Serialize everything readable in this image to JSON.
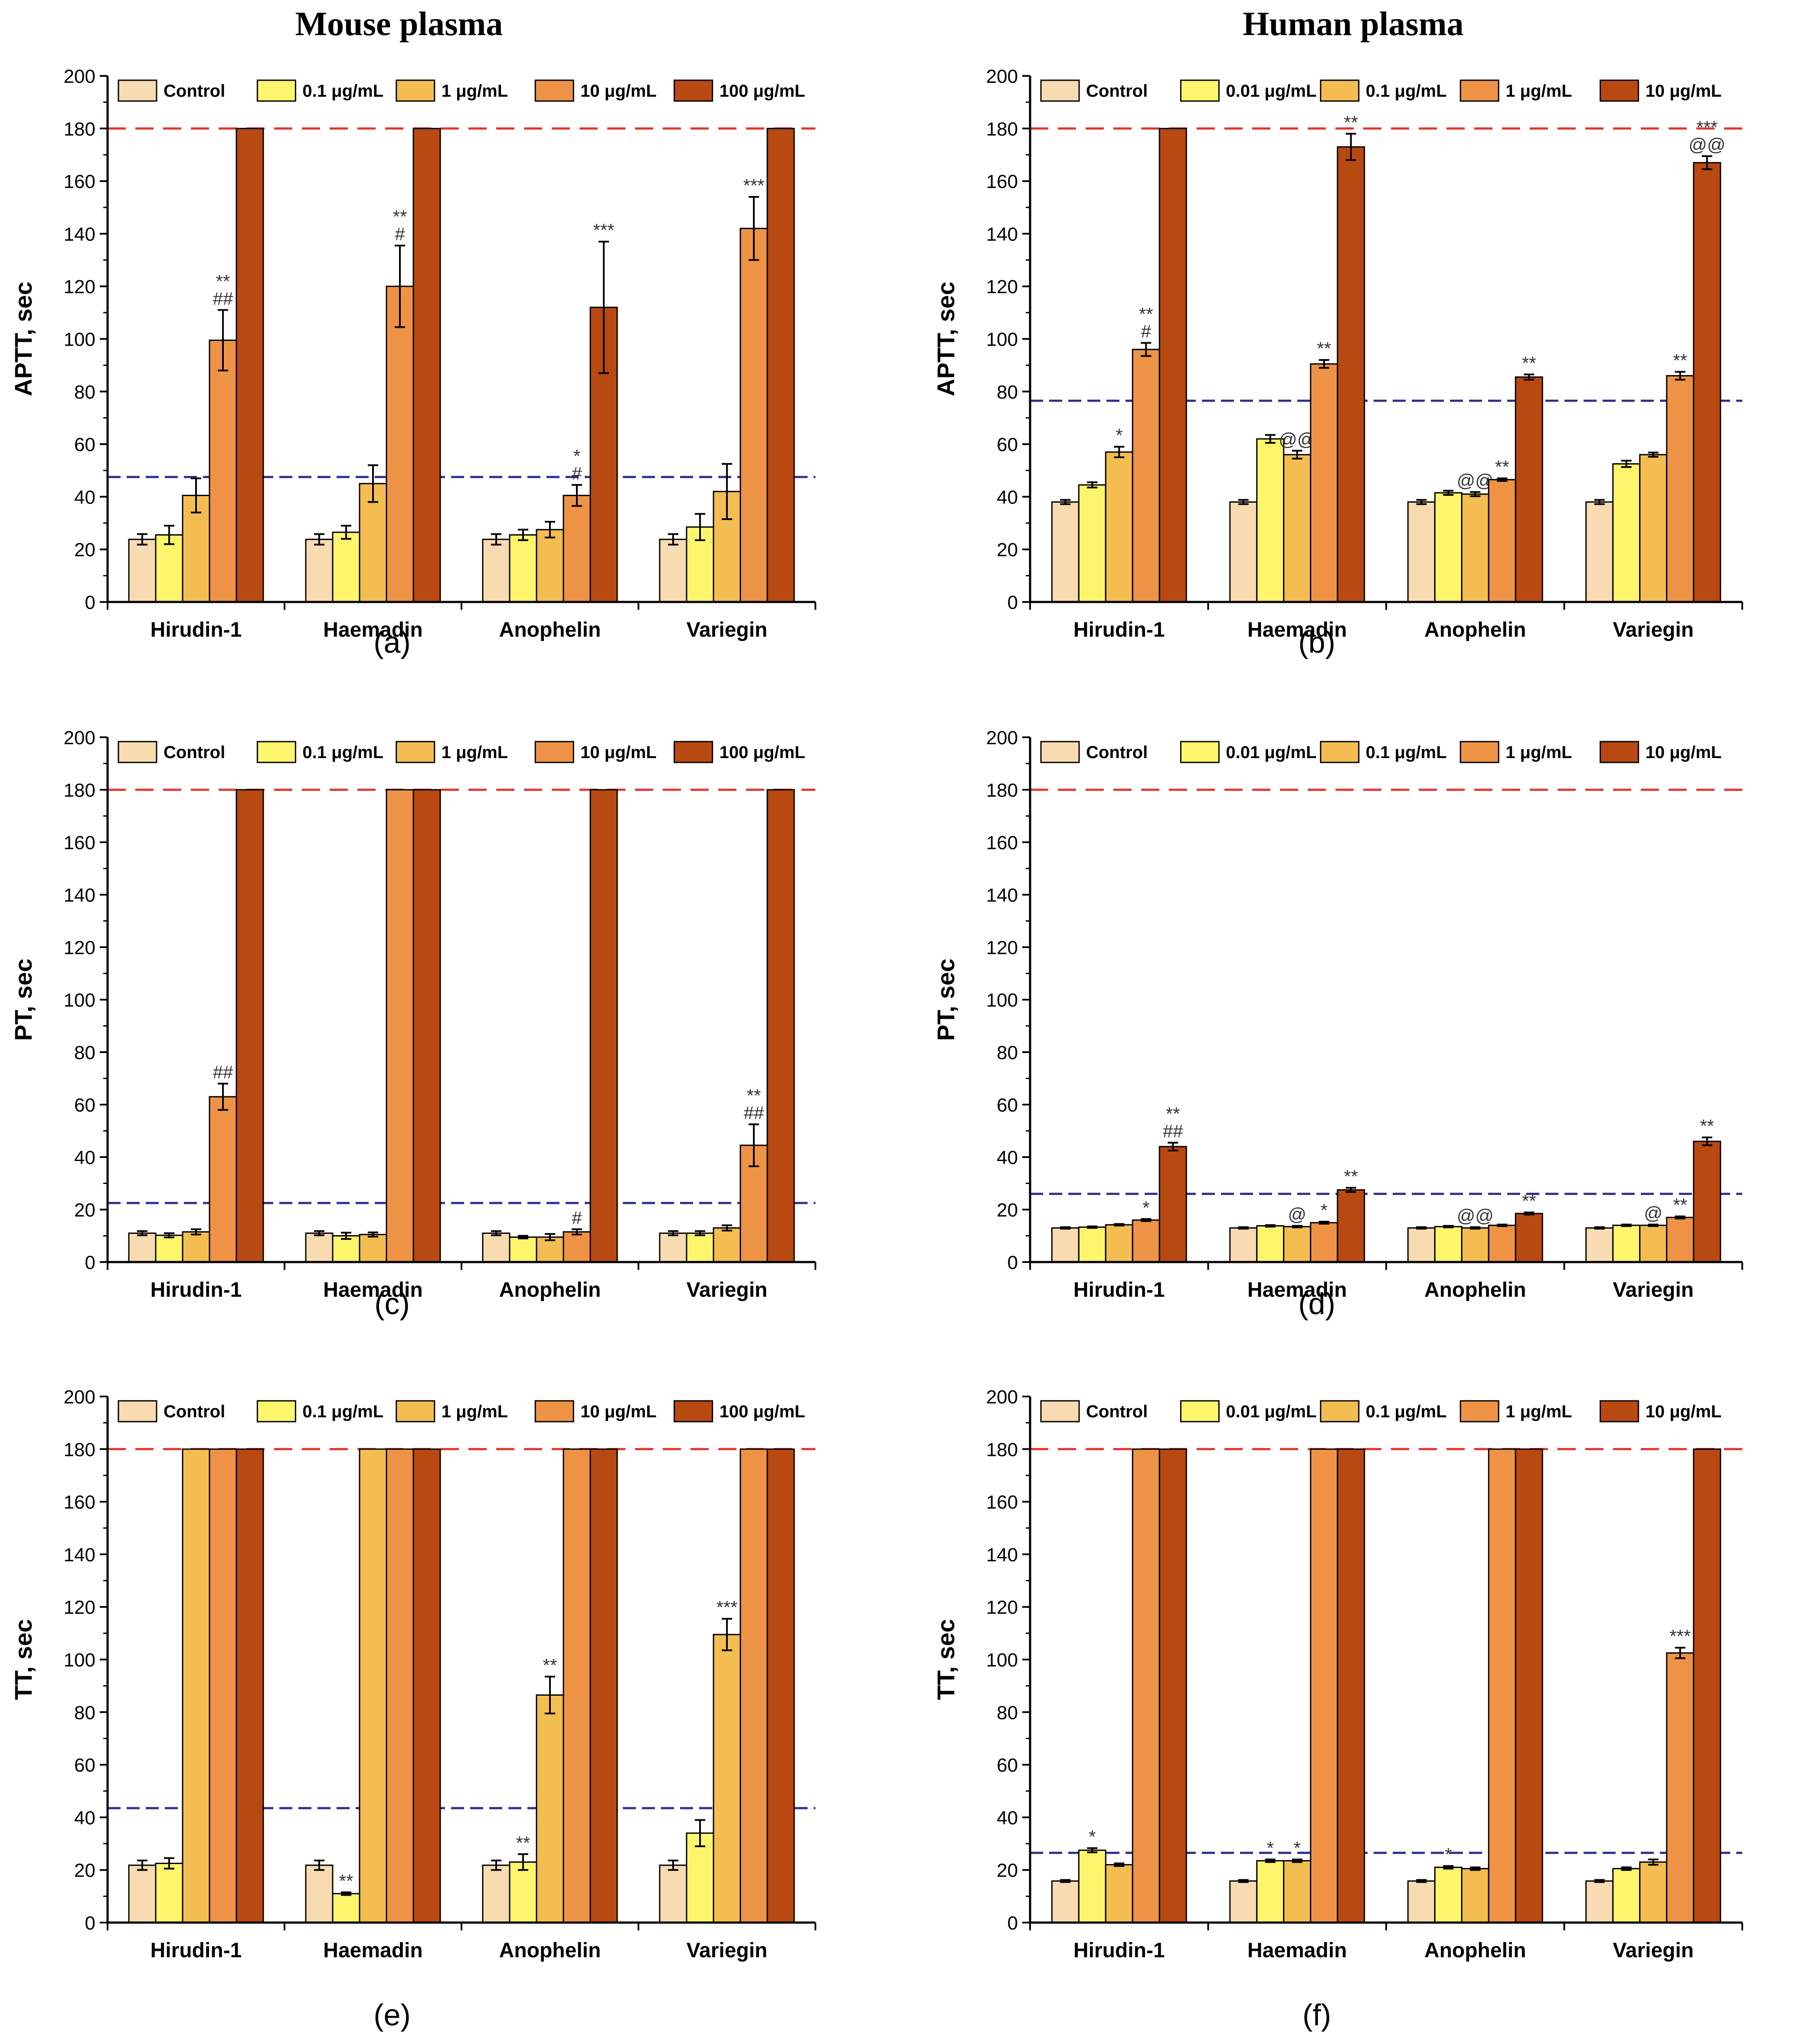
{
  "figure": {
    "column_titles": [
      "Mouse plasma",
      "Human plasma"
    ]
  },
  "colors": {
    "series": [
      "#f8dbb0",
      "#fdf56c",
      "#f3bd52",
      "#ee9346",
      "#b84911"
    ],
    "upper_ref_line": "#e0342c",
    "lower_ref_line": "#2d2d8c",
    "axis": "#000000",
    "error_bar": "#000000"
  },
  "chart_data": [
    {
      "id": "a",
      "panel_label": "(a)",
      "type": "bar",
      "title": "",
      "ylabel": "APTT, sec",
      "ylim": [
        0,
        200
      ],
      "yticks": [
        0,
        20,
        40,
        60,
        80,
        100,
        120,
        140,
        160,
        180,
        200
      ],
      "ytick_labels": [
        "0",
        "20",
        "40",
        "60",
        "80",
        "100",
        "120",
        "140",
        "160",
        "180",
        "200"
      ],
      "categories": [
        "Hirudin-1",
        "Haemadin",
        "Anophelin",
        "Variegin"
      ],
      "legend": [
        "Control",
        "0.1 μg/mL",
        "1 μg/mL",
        "10 μg/mL",
        "100 μg/mL"
      ],
      "ref_lines": {
        "upper": 180,
        "lower": 47.5
      },
      "series": [
        {
          "name": "Control",
          "values": [
            23.8,
            23.8,
            23.8,
            23.8
          ],
          "errors": [
            2,
            2,
            2,
            2
          ],
          "labels": [
            [],
            [],
            [],
            []
          ]
        },
        {
          "name": "0.1 μg/mL",
          "values": [
            25.5,
            26.5,
            25.5,
            28.5
          ],
          "errors": [
            3.5,
            2.5,
            2,
            5
          ],
          "labels": [
            [],
            [],
            [],
            []
          ]
        },
        {
          "name": "1 μg/mL",
          "values": [
            40.5,
            45,
            27.5,
            42
          ],
          "errors": [
            6.5,
            7,
            3,
            10.5
          ],
          "labels": [
            [],
            [],
            [],
            []
          ]
        },
        {
          "name": "10 μg/mL",
          "values": [
            99.5,
            120,
            40.5,
            142
          ],
          "errors": [
            11.5,
            15.5,
            4,
            12
          ],
          "labels": [
            [
              "**",
              "##"
            ],
            [
              "**",
              "#"
            ],
            [
              "*",
              "#"
            ],
            [
              "***"
            ]
          ]
        },
        {
          "name": "100 μg/mL",
          "values": [
            180,
            180,
            112,
            180
          ],
          "errors": [
            0,
            0,
            25,
            0
          ],
          "labels": [
            [],
            [],
            [
              "***"
            ],
            []
          ]
        }
      ]
    },
    {
      "id": "b",
      "panel_label": "(b)",
      "type": "bar",
      "title": "",
      "ylabel": "APTT, sec",
      "ylim": [
        0,
        200
      ],
      "yticks": [
        0,
        20,
        40,
        60,
        80,
        100,
        120,
        140,
        160,
        180,
        200
      ],
      "ytick_labels": [
        "0",
        "20",
        "40",
        "60",
        "80",
        "100",
        "120",
        "140",
        "160",
        "180",
        "200"
      ],
      "categories": [
        "Hirudin-1",
        "Haemadin",
        "Anophelin",
        "Variegin"
      ],
      "legend": [
        "Control",
        "0.01 μg/mL",
        "0.1 μg/mL",
        "1 μg/mL",
        "10 μg/mL"
      ],
      "ref_lines": {
        "upper": 180,
        "lower": 76.5
      },
      "series": [
        {
          "name": "Control",
          "values": [
            38,
            38,
            38,
            38
          ],
          "errors": [
            0.8,
            0.8,
            0.8,
            0.8
          ],
          "labels": [
            [],
            [],
            [],
            []
          ]
        },
        {
          "name": "0.01 μg/mL",
          "values": [
            44.5,
            62,
            41.5,
            52.5
          ],
          "errors": [
            1,
            1.5,
            0.8,
            1.2
          ],
          "labels": [
            [],
            [],
            [],
            []
          ]
        },
        {
          "name": "0.1 μg/mL",
          "values": [
            57,
            56,
            41,
            56
          ],
          "errors": [
            2,
            1.5,
            0.8,
            0.8
          ],
          "labels": [
            [
              "*"
            ],
            [
              "@@"
            ],
            [
              "@@"
            ],
            []
          ]
        },
        {
          "name": "1 μg/mL",
          "values": [
            96,
            90.5,
            46.5,
            86
          ],
          "errors": [
            2.5,
            1.5,
            0.5,
            1.5
          ],
          "labels": [
            [
              "**",
              "#"
            ],
            [
              "**"
            ],
            [
              "**"
            ],
            [
              "**"
            ]
          ]
        },
        {
          "name": "10 μg/mL",
          "values": [
            180,
            173,
            85.5,
            167
          ],
          "errors": [
            0,
            5,
            1,
            2.5
          ],
          "labels": [
            [],
            [
              "**"
            ],
            [
              "**"
            ],
            [
              "***",
              "@@"
            ]
          ]
        }
      ]
    },
    {
      "id": "c",
      "panel_label": "(c)",
      "type": "bar",
      "title": "",
      "ylabel": "PT, sec",
      "ylim": [
        0,
        200
      ],
      "yticks": [
        0,
        20,
        40,
        60,
        80,
        100,
        120,
        140,
        160,
        180,
        200
      ],
      "ytick_labels": [
        "0",
        "20",
        "40",
        "60",
        "80",
        "100",
        "120",
        "140",
        "160",
        "180",
        "200"
      ],
      "categories": [
        "Hirudin-1",
        "Haemadin",
        "Anophelin",
        "Variegin"
      ],
      "legend": [
        "Control",
        "0.1 μg/mL",
        "1 μg/mL",
        "10 μg/mL",
        "100 μg/mL"
      ],
      "ref_lines": {
        "upper": 180,
        "lower": 22.5
      },
      "series": [
        {
          "name": "Control",
          "values": [
            11,
            11,
            11,
            11
          ],
          "errors": [
            0.8,
            0.8,
            0.8,
            0.8
          ],
          "labels": [
            [],
            [],
            [],
            []
          ]
        },
        {
          "name": "0.1 μg/mL",
          "values": [
            10.2,
            10,
            9.5,
            11
          ],
          "errors": [
            0.8,
            1.2,
            0.5,
            0.8
          ],
          "labels": [
            [],
            [],
            [],
            []
          ]
        },
        {
          "name": "1 μg/mL",
          "values": [
            11.5,
            10.5,
            9.5,
            13
          ],
          "errors": [
            1,
            0.8,
            1.2,
            1
          ],
          "labels": [
            [],
            [],
            [],
            []
          ]
        },
        {
          "name": "10 μg/mL",
          "values": [
            63,
            180,
            11.5,
            44.5
          ],
          "errors": [
            5,
            0,
            1,
            8
          ],
          "labels": [
            [
              "##"
            ],
            [],
            [
              "#"
            ],
            [
              "**",
              "##"
            ]
          ]
        },
        {
          "name": "100 μg/mL",
          "values": [
            180,
            180,
            180,
            180
          ],
          "errors": [
            0,
            0,
            0,
            0
          ],
          "labels": [
            [],
            [],
            [],
            []
          ]
        }
      ]
    },
    {
      "id": "d",
      "panel_label": "(d)",
      "type": "bar",
      "title": "",
      "ylabel": "PT, sec",
      "ylim": [
        0,
        200
      ],
      "yticks": [
        0,
        20,
        40,
        60,
        80,
        100,
        120,
        140,
        160,
        180,
        200
      ],
      "ytick_labels": [
        "0",
        "20",
        "40",
        "60",
        "80",
        "100",
        "120",
        "140",
        "160",
        "180",
        "200"
      ],
      "categories": [
        "Hirudin-1",
        "Haemadin",
        "Anophelin",
        "Variegin"
      ],
      "legend": [
        "Control",
        "0.01 μg/mL",
        "0.1 μg/mL",
        "1 μg/mL",
        "10 μg/mL"
      ],
      "ref_lines": {
        "upper": 180,
        "lower": 26
      },
      "series": [
        {
          "name": "Control",
          "values": [
            13,
            13,
            13,
            13
          ],
          "errors": [
            0.3,
            0.3,
            0.3,
            0.3
          ],
          "labels": [
            [],
            [],
            [],
            []
          ]
        },
        {
          "name": "0.01 μg/mL",
          "values": [
            13.3,
            13.8,
            13.5,
            14
          ],
          "errors": [
            0.3,
            0.3,
            0.3,
            0.3
          ],
          "labels": [
            [],
            [],
            [],
            []
          ]
        },
        {
          "name": "0.1 μg/mL",
          "values": [
            14.2,
            13.5,
            13,
            14
          ],
          "errors": [
            0.3,
            0.3,
            0.3,
            0.3
          ],
          "labels": [
            [],
            [
              "@"
            ],
            [
              "@@"
            ],
            [
              "@"
            ]
          ]
        },
        {
          "name": "1 μg/mL",
          "values": [
            16,
            15,
            14,
            17
          ],
          "errors": [
            0.4,
            0.4,
            0.3,
            0.4
          ],
          "labels": [
            [
              "*"
            ],
            [
              "*"
            ],
            [],
            [
              "**"
            ]
          ]
        },
        {
          "name": "10 μg/mL",
          "values": [
            44,
            27.5,
            18.5,
            46
          ],
          "errors": [
            1.5,
            0.8,
            0.4,
            1.5
          ],
          "labels": [
            [
              "**",
              "##"
            ],
            [
              "**"
            ],
            [
              "**"
            ],
            [
              "**"
            ]
          ]
        }
      ]
    },
    {
      "id": "e",
      "panel_label": "(e)",
      "type": "bar",
      "title": "",
      "ylabel": "TT, sec",
      "ylim": [
        0,
        200
      ],
      "yticks": [
        0,
        20,
        40,
        60,
        80,
        100,
        120,
        140,
        160,
        180,
        200
      ],
      "ytick_labels": [
        "0",
        "20",
        "40",
        "60",
        "80",
        "100",
        "120",
        "140",
        "160",
        "180",
        "200"
      ],
      "categories": [
        "Hirudin-1",
        "Haemadin",
        "Anophelin",
        "Variegin"
      ],
      "legend": [
        "Control",
        "0.1 μg/mL",
        "1 μg/mL",
        "10 μg/mL",
        "100 μg/mL"
      ],
      "ref_lines": {
        "upper": 180,
        "lower": 43.5
      },
      "series": [
        {
          "name": "Control",
          "values": [
            21.8,
            21.8,
            21.8,
            21.8
          ],
          "errors": [
            1.8,
            1.8,
            1.8,
            1.8
          ],
          "labels": [
            [],
            [],
            [],
            []
          ]
        },
        {
          "name": "0.1 μg/mL",
          "values": [
            22.5,
            11,
            23,
            34
          ],
          "errors": [
            2,
            0.5,
            3,
            5
          ],
          "labels": [
            [],
            [
              "**"
            ],
            [
              "**"
            ],
            []
          ]
        },
        {
          "name": "1 μg/mL",
          "values": [
            180,
            180,
            86.5,
            109.5
          ],
          "errors": [
            0,
            0,
            7,
            6
          ],
          "labels": [
            [],
            [],
            [
              "**"
            ],
            [
              "***"
            ]
          ]
        },
        {
          "name": "10 μg/mL",
          "values": [
            180,
            180,
            180,
            180
          ],
          "errors": [
            0,
            0,
            0,
            0
          ],
          "labels": [
            [],
            [],
            [],
            []
          ]
        },
        {
          "name": "100 μg/mL",
          "values": [
            180,
            180,
            180,
            180
          ],
          "errors": [
            0,
            0,
            0,
            0
          ],
          "labels": [
            [],
            [],
            [],
            []
          ]
        }
      ]
    },
    {
      "id": "f",
      "panel_label": "(f)",
      "type": "bar",
      "title": "",
      "ylabel": "TT, sec",
      "ylim": [
        0,
        200
      ],
      "yticks": [
        0,
        20,
        40,
        60,
        80,
        100,
        120,
        140,
        160,
        180,
        200
      ],
      "ytick_labels": [
        "0",
        "20",
        "40",
        "60",
        "80",
        "100",
        "120",
        "140",
        "160",
        "180",
        "200"
      ],
      "categories": [
        "Hirudin-1",
        "Haemadin",
        "Anophelin",
        "Variegin"
      ],
      "legend": [
        "Control",
        "0.01 μg/mL",
        "0.1 μg/mL",
        "1 μg/mL",
        "10 μg/mL"
      ],
      "ref_lines": {
        "upper": 180,
        "lower": 26.5
      },
      "series": [
        {
          "name": "Control",
          "values": [
            15.8,
            15.8,
            15.8,
            15.8
          ],
          "errors": [
            0.4,
            0.4,
            0.4,
            0.4
          ],
          "labels": [
            [],
            [],
            [],
            []
          ]
        },
        {
          "name": "0.01 μg/mL",
          "values": [
            27.5,
            23.5,
            21,
            20.5
          ],
          "errors": [
            0.8,
            0.5,
            0.5,
            0.5
          ],
          "labels": [
            [
              "*"
            ],
            [
              "*"
            ],
            [
              "*"
            ],
            []
          ]
        },
        {
          "name": "0.1 μg/mL",
          "values": [
            22,
            23.5,
            20.5,
            23
          ],
          "errors": [
            0.5,
            0.5,
            0.5,
            1
          ],
          "labels": [
            [],
            [
              "*"
            ],
            [],
            []
          ]
        },
        {
          "name": "1 μg/mL",
          "values": [
            180,
            180,
            180,
            102.5
          ],
          "errors": [
            0,
            0,
            0,
            2
          ],
          "labels": [
            [],
            [],
            [],
            [
              "***"
            ]
          ]
        },
        {
          "name": "10 μg/mL",
          "values": [
            180,
            180,
            180,
            180
          ],
          "errors": [
            0,
            0,
            0,
            0
          ],
          "labels": [
            [],
            [],
            [],
            []
          ]
        }
      ]
    }
  ]
}
